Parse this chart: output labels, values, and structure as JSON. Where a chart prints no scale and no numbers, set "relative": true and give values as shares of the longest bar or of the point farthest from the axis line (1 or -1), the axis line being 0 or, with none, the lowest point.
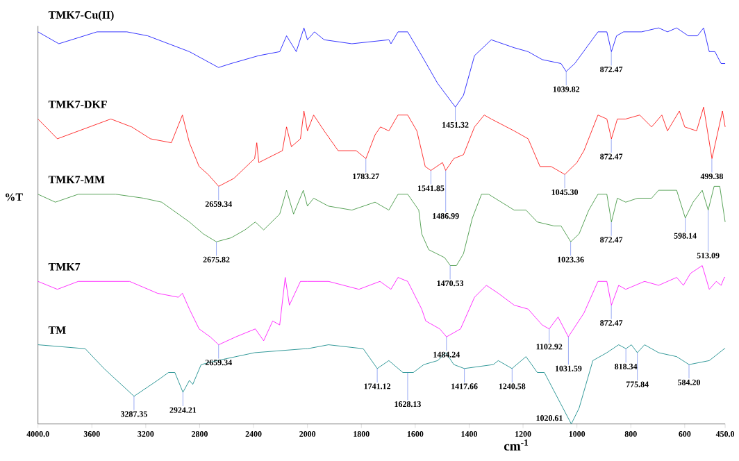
{
  "chart_data": [
    {
      "type": "line",
      "relative": true,
      "ylabel": "%T",
      "xlim": [
        4000,
        2000
      ],
      "xticks": [
        {
          "value": 4000,
          "label": "4000.0"
        },
        3600,
        3200,
        2800,
        2400,
        2000
      ],
      "series": [
        {
          "name": "TMK7-Cu(II)",
          "color": "#0000ff",
          "x": [
            4000,
            3845,
            3562,
            3340,
            3186,
            2876,
            2660,
            2567,
            2361,
            2206,
            2155,
            2083,
            2026,
            2000
          ],
          "values": [
            0.99,
            0.96,
            0.99,
            0.99,
            0.98,
            0.94,
            0.9,
            0.91,
            0.93,
            0.94,
            0.98,
            0.94,
            1,
            0.97
          ]
        },
        {
          "name": "TMK7-DKF",
          "color": "#ff0000",
          "x": [
            4000,
            3856,
            3459,
            3304,
            3165,
            3010,
            2928,
            2876,
            2804,
            2737,
            2659,
            2546,
            2392,
            2376,
            2361,
            2186,
            2155,
            2119,
            2052,
            2026,
            2000
          ],
          "values": [
            0.77,
            0.72,
            0.77,
            0.75,
            0.72,
            0.71,
            0.78,
            0.71,
            0.65,
            0.63,
            0.6,
            0.62,
            0.67,
            0.71,
            0.66,
            0.69,
            0.75,
            0.7,
            0.72,
            0.79,
            0.74
          ]
        },
        {
          "name": "TMK7-MM",
          "color": "#2e8b2e",
          "x": [
            4000,
            3871,
            3701,
            3423,
            3216,
            3082,
            2876,
            2773,
            2676,
            2567,
            2464,
            2387,
            2325,
            2206,
            2155,
            2103,
            2031,
            2000
          ],
          "values": [
            0.58,
            0.56,
            0.58,
            0.58,
            0.57,
            0.56,
            0.51,
            0.48,
            0.46,
            0.47,
            0.49,
            0.51,
            0.49,
            0.53,
            0.59,
            0.53,
            0.59,
            0.55
          ]
        },
        {
          "name": "TMK7",
          "color": "#ff00ff",
          "x": [
            4000,
            3856,
            3701,
            3320,
            3113,
            2959,
            2928,
            2876,
            2804,
            2722,
            2659,
            2531,
            2387,
            2325,
            2258,
            2206,
            2165,
            2134,
            2052,
            2000
          ],
          "values": [
            0.36,
            0.34,
            0.36,
            0.36,
            0.33,
            0.32,
            0.33,
            0.29,
            0.24,
            0.22,
            0.2,
            0.22,
            0.24,
            0.21,
            0.26,
            0.25,
            0.37,
            0.3,
            0.36,
            0.36
          ]
        },
        {
          "name": "TM",
          "color": "#008080",
          "x": [
            4000,
            3649,
            3510,
            3287,
            3113,
            3031,
            2984,
            2924,
            2876,
            2851,
            2789,
            2670,
            2392,
            2015,
            2000
          ],
          "values": [
            0.2,
            0.19,
            0.14,
            0.07,
            0.11,
            0.13,
            0.13,
            0.08,
            0.11,
            0.1,
            0.15,
            0.16,
            0.18,
            0.19,
            0.19
          ]
        }
      ],
      "annotations": [
        {
          "text": "2659.34",
          "x": 2659.34,
          "y": 0.6
        },
        {
          "text": "2675.82",
          "x": 2675.82,
          "y": 0.46
        },
        {
          "text": "2659.34",
          "x": 2659.34,
          "y": 0.2
        },
        {
          "text": "3287.35",
          "x": 3287.35,
          "y": 0.07
        },
        {
          "text": "2924.21",
          "x": 2924.21,
          "y": 0.08
        }
      ]
    },
    {
      "type": "line",
      "relative": true,
      "xlabel": "cm$^{-1}$",
      "xlim": [
        2000,
        450
      ],
      "xticks": [
        1800,
        1600,
        1400,
        1200,
        1000,
        800,
        600,
        {
          "value": 450,
          "label": "450.0"
        }
      ],
      "series": [
        {
          "color": "#0000ff",
          "x": [
            2000,
            1974,
            1938,
            1835,
            1698,
            1690,
            1664,
            1628,
            1576,
            1517,
            1451,
            1421,
            1380,
            1318,
            1233,
            1181,
            1129,
            1059,
            1040,
            1008,
            922,
            889,
            872,
            853,
            827,
            760,
            697,
            664,
            630,
            587,
            553,
            530,
            509,
            488,
            465,
            450
          ],
          "values": [
            0.97,
            0.99,
            0.97,
            0.96,
            0.97,
            0.96,
            0.99,
            0.99,
            0.93,
            0.86,
            0.8,
            0.83,
            0.93,
            0.97,
            0.95,
            0.94,
            0.92,
            0.91,
            0.89,
            0.91,
            0.99,
            0.99,
            0.94,
            0.98,
            0.99,
            0.99,
            1,
            0.99,
            1,
            0.98,
            0.98,
            1,
            0.94,
            0.94,
            0.91,
            0.91
          ]
        },
        {
          "color": "#ff0000",
          "x": [
            2000,
            1977,
            1938,
            1886,
            1819,
            1783,
            1749,
            1729,
            1698,
            1664,
            1628,
            1594,
            1563,
            1542,
            1499,
            1487,
            1457,
            1421,
            1380,
            1344,
            1318,
            1233,
            1181,
            1137,
            1096,
            1045,
            1000,
            974,
            922,
            889,
            872,
            850,
            819,
            767,
            723,
            685,
            664,
            620,
            600,
            556,
            530,
            499,
            460,
            450
          ],
          "values": [
            0.74,
            0.78,
            0.74,
            0.69,
            0.69,
            0.67,
            0.73,
            0.75,
            0.74,
            0.78,
            0.78,
            0.74,
            0.65,
            0.64,
            0.66,
            0.64,
            0.67,
            0.68,
            0.75,
            0.78,
            0.77,
            0.74,
            0.72,
            0.65,
            0.65,
            0.63,
            0.66,
            0.69,
            0.78,
            0.77,
            0.72,
            0.77,
            0.77,
            0.78,
            0.75,
            0.78,
            0.74,
            0.79,
            0.75,
            0.74,
            0.8,
            0.67,
            0.79,
            0.75
          ]
        },
        {
          "color": "#2e8b2e",
          "x": [
            2000,
            1977,
            1922,
            1835,
            1749,
            1698,
            1664,
            1628,
            1587,
            1576,
            1550,
            1491,
            1470,
            1447,
            1421,
            1388,
            1354,
            1328,
            1233,
            1189,
            1147,
            1085,
            1059,
            1023,
            992,
            956,
            922,
            889,
            872,
            850,
            819,
            775,
            723,
            697,
            630,
            598,
            569,
            535,
            513,
            491,
            470,
            450
          ],
          "values": [
            0.55,
            0.57,
            0.55,
            0.54,
            0.56,
            0.54,
            0.58,
            0.58,
            0.54,
            0.48,
            0.44,
            0.42,
            0.4,
            0.4,
            0.43,
            0.52,
            0.58,
            0.58,
            0.54,
            0.54,
            0.51,
            0.5,
            0.5,
            0.46,
            0.48,
            0.54,
            0.58,
            0.58,
            0.51,
            0.57,
            0.56,
            0.57,
            0.57,
            0.59,
            0.59,
            0.52,
            0.56,
            0.59,
            0.54,
            0.6,
            0.6,
            0.51
          ]
        },
        {
          "color": "#ff00ff",
          "x": [
            2000,
            1922,
            1809,
            1731,
            1690,
            1664,
            1628,
            1576,
            1561,
            1509,
            1484,
            1432,
            1380,
            1336,
            1292,
            1233,
            1181,
            1129,
            1103,
            1070,
            1032,
            974,
            922,
            889,
            872,
            845,
            819,
            749,
            697,
            630,
            605,
            579,
            535,
            509,
            483,
            465,
            453,
            450
          ],
          "values": [
            0.36,
            0.36,
            0.34,
            0.36,
            0.34,
            0.37,
            0.36,
            0.29,
            0.26,
            0.24,
            0.22,
            0.24,
            0.32,
            0.35,
            0.33,
            0.3,
            0.29,
            0.25,
            0.24,
            0.27,
            0.22,
            0.28,
            0.36,
            0.36,
            0.3,
            0.35,
            0.34,
            0.36,
            0.35,
            0.37,
            0.35,
            0.38,
            0.4,
            0.34,
            0.36,
            0.35,
            0.37,
            0.37
          ]
        },
        {
          "color": "#008080",
          "x": [
            2000,
            1922,
            1793,
            1741,
            1698,
            1646,
            1628,
            1607,
            1568,
            1517,
            1486,
            1457,
            1418,
            1310,
            1292,
            1241,
            1189,
            1147,
            1121,
            1021,
            992,
            941,
            889,
            845,
            818,
            798,
            776,
            749,
            697,
            630,
            584,
            509,
            453,
            450
          ],
          "values": [
            0.19,
            0.2,
            0.19,
            0.14,
            0.16,
            0.13,
            0.13,
            0.13,
            0.15,
            0.16,
            0.18,
            0.15,
            0.14,
            0.15,
            0.16,
            0.14,
            0.17,
            0.13,
            0.13,
            0,
            0.04,
            0.16,
            0.18,
            0.2,
            0.19,
            0.2,
            0.18,
            0.2,
            0.18,
            0.17,
            0.15,
            0.16,
            0.19,
            0.19
          ]
        }
      ],
      "annotations": [
        {
          "text": "1451.32",
          "x": 1451.32,
          "y": 0.8
        },
        {
          "text": "1039.82",
          "x": 1039.82,
          "y": 0.89
        },
        {
          "text": "872.47",
          "x": 872.47,
          "y": 0.94
        },
        {
          "text": "1783.27",
          "x": 1783.27,
          "y": 0.67
        },
        {
          "text": "1541.85",
          "x": 1541.85,
          "y": 0.64
        },
        {
          "text": "1486.99",
          "x": 1486.99,
          "y": 0.64
        },
        {
          "text": "1045.30",
          "x": 1045.3,
          "y": 0.63
        },
        {
          "text": "872.47",
          "x": 872.47,
          "y": 0.72
        },
        {
          "text": "499.38",
          "x": 499.38,
          "y": 0.67
        },
        {
          "text": "1470.53",
          "x": 1470.53,
          "y": 0.4
        },
        {
          "text": "1023.36",
          "x": 1023.36,
          "y": 0.46
        },
        {
          "text": "872.47",
          "x": 872.47,
          "y": 0.51
        },
        {
          "text": "598.14",
          "x": 598.14,
          "y": 0.52
        },
        {
          "text": "513.09",
          "x": 513.09,
          "y": 0.54
        },
        {
          "text": "1484.24",
          "x": 1484.24,
          "y": 0.22
        },
        {
          "text": "1102.92",
          "x": 1102.92,
          "y": 0.24
        },
        {
          "text": "1031.59",
          "x": 1031.59,
          "y": 0.22
        },
        {
          "text": "872.47",
          "x": 872.47,
          "y": 0.3
        },
        {
          "text": "1741.12",
          "x": 1741.12,
          "y": 0.14
        },
        {
          "text": "1628.13",
          "x": 1628.13,
          "y": 0.13
        },
        {
          "text": "1417.66",
          "x": 1417.66,
          "y": 0.14
        },
        {
          "text": "1240.58",
          "x": 1240.58,
          "y": 0.14
        },
        {
          "text": "1020.61",
          "x": 1020.61,
          "y": 0
        },
        {
          "text": "818.34",
          "x": 818.34,
          "y": 0.19
        },
        {
          "text": "775.84",
          "x": 775.84,
          "y": 0.18
        },
        {
          "text": "584.20",
          "x": 584.2,
          "y": 0.15
        }
      ]
    }
  ]
}
